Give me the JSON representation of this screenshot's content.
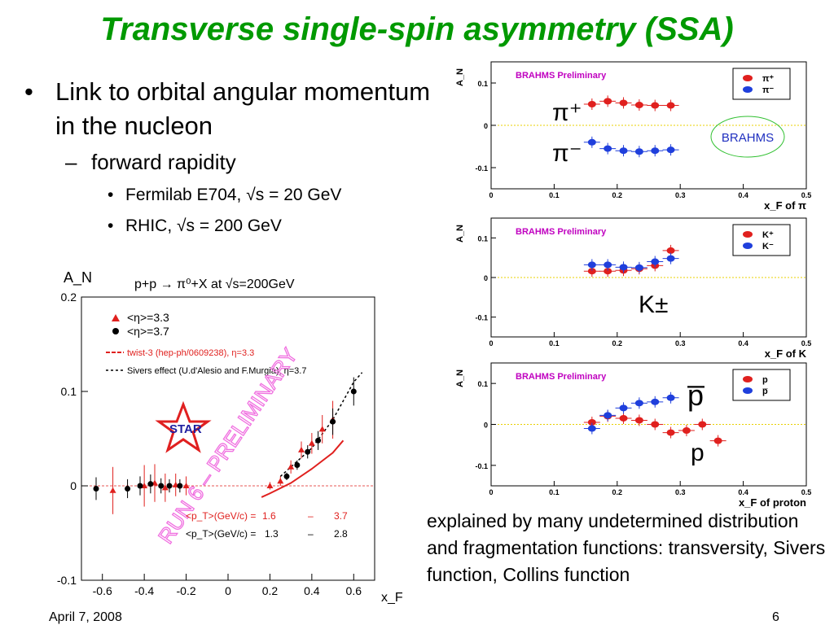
{
  "slide": {
    "title": "Transverse single-spin asymmetry (SSA)",
    "bullet1": "Link to orbital angular momentum in the nucleon",
    "bullet2": "forward rapidity",
    "bullet3a": "Fermilab E704, √s = 20 GeV",
    "bullet3b": "RHIC, √s = 200 GeV",
    "explanation": "explained by many undetermined distribution and fragmentation functions: transversity, Sivers function, Collins function",
    "date": "April 7, 2008",
    "page": "6"
  },
  "colors": {
    "title": "#009900",
    "red": "#e0201e",
    "blue": "#1f3fdc",
    "brahms_label": "#c000c0",
    "star_red": "#e02020"
  },
  "chart_data": [
    {
      "type": "scatter",
      "title": "p+p → π⁰+X at √s=200GeV",
      "ylabel": "A_N",
      "xlabel": "x_F",
      "xlim": [
        -0.7,
        0.7
      ],
      "ylim": [
        -0.1,
        0.2
      ],
      "xticks": [
        "-0.6",
        "-0.4",
        "-0.2",
        "0",
        "0.2",
        "0.4",
        "0.6"
      ],
      "yticks": [
        "-0.1",
        "0",
        "0.1",
        "0.2"
      ],
      "ytick_values": [
        -0.1,
        0,
        0.1,
        0.2
      ],
      "xtick_values": [
        -0.6,
        -0.4,
        -0.2,
        0,
        0.2,
        0.4,
        0.6
      ],
      "legend": [
        "<η>=3.3",
        "<η>=3.7",
        "twist-3 (hep-ph/0609238), η=3.3",
        "Sivers effect (U.d'Alesio and F.Murgia), η=3.7"
      ],
      "pt_lines": [
        "<p_T>(GeV/c) =",
        "1.6",
        "–",
        "3.7",
        "<p_T>(GeV/c) =",
        "1.3",
        "–",
        "2.8"
      ],
      "watermark": "RUN 6 – PRELIMINARY",
      "logo": "STAR",
      "series": [
        {
          "name": "<η>=3.3",
          "color": "#e0201e",
          "marker": "triangle",
          "x": [
            -0.55,
            -0.4,
            -0.35,
            -0.3,
            -0.25,
            -0.2,
            0.2,
            0.25,
            0.3,
            0.35,
            0.4,
            0.45,
            0.5
          ],
          "y": [
            -0.005,
            0.0,
            0.003,
            -0.002,
            0.001,
            0.0,
            0.0,
            0.005,
            0.02,
            0.038,
            0.045,
            0.06,
            0.07
          ],
          "err": [
            0.025,
            0.022,
            0.02,
            0.015,
            0.012,
            0.01,
            0.004,
            0.005,
            0.007,
            0.009,
            0.011,
            0.015,
            0.02
          ]
        },
        {
          "name": "<η>=3.7",
          "color": "#000000",
          "marker": "circle",
          "x": [
            -0.63,
            -0.48,
            -0.42,
            -0.37,
            -0.32,
            -0.28,
            -0.23,
            0.28,
            0.33,
            0.38,
            0.43,
            0.5,
            0.6
          ],
          "y": [
            -0.003,
            -0.003,
            0.0,
            0.002,
            0.0,
            0.0,
            0.0,
            0.01,
            0.022,
            0.036,
            0.048,
            0.068,
            0.1
          ],
          "err": [
            0.012,
            0.01,
            0.01,
            0.01,
            0.008,
            0.007,
            0.007,
            0.004,
            0.005,
            0.007,
            0.01,
            0.014,
            0.015
          ]
        }
      ]
    },
    {
      "type": "scatter",
      "label": "BRAHMS Preliminary",
      "xlabel": "x_F of π",
      "ylabel": "A_N",
      "xlim": [
        0,
        0.5
      ],
      "ylim": [
        -0.15,
        0.15
      ],
      "xticks": [
        "0",
        "0.1",
        "0.2",
        "0.3",
        "0.4",
        "0.5"
      ],
      "yticks": [
        "0.1",
        "0",
        "-0.1"
      ],
      "annotations": [
        "π⁺",
        "π⁻",
        "BRAHMS"
      ],
      "series": [
        {
          "name": "π⁺",
          "color": "#e0201e",
          "x": [
            0.16,
            0.185,
            0.21,
            0.235,
            0.26,
            0.285
          ],
          "y": [
            0.05,
            0.057,
            0.053,
            0.048,
            0.047,
            0.047
          ]
        },
        {
          "name": "π⁻",
          "color": "#1f3fdc",
          "x": [
            0.16,
            0.185,
            0.21,
            0.235,
            0.26,
            0.285
          ],
          "y": [
            -0.04,
            -0.055,
            -0.06,
            -0.062,
            -0.06,
            -0.058
          ]
        }
      ]
    },
    {
      "type": "scatter",
      "label": "BRAHMS Preliminary",
      "xlabel": "x_F of K",
      "ylabel": "A_N",
      "xlim": [
        0,
        0.5
      ],
      "ylim": [
        -0.15,
        0.15
      ],
      "xticks": [
        "0",
        "0.1",
        "0.2",
        "0.3",
        "0.4",
        "0.5"
      ],
      "yticks": [
        "0.1",
        "0",
        "-0.1"
      ],
      "annotations": [
        "K±"
      ],
      "series": [
        {
          "name": "K⁺",
          "color": "#e0201e",
          "x": [
            0.16,
            0.185,
            0.21,
            0.235,
            0.26,
            0.285
          ],
          "y": [
            0.016,
            0.016,
            0.018,
            0.022,
            0.03,
            0.068
          ]
        },
        {
          "name": "K⁻",
          "color": "#1f3fdc",
          "x": [
            0.16,
            0.185,
            0.21,
            0.235,
            0.26,
            0.285
          ],
          "y": [
            0.032,
            0.032,
            0.026,
            0.025,
            0.04,
            0.048
          ]
        }
      ]
    },
    {
      "type": "scatter",
      "label": "BRAHMS Preliminary",
      "xlabel": "x_F of proton",
      "ylabel": "A_N",
      "xlim": [
        0,
        0.5
      ],
      "ylim": [
        -0.15,
        0.15
      ],
      "xticks": [
        "0",
        "0.1",
        "0.2",
        "0.3",
        "0.4",
        "0.5"
      ],
      "yticks": [
        "0.1",
        "0",
        "-0.1"
      ],
      "annotations": [
        "p̅",
        "p"
      ],
      "series": [
        {
          "name": "p",
          "color": "#e0201e",
          "x": [
            0.16,
            0.185,
            0.21,
            0.235,
            0.26,
            0.285,
            0.31,
            0.335,
            0.36
          ],
          "y": [
            0.005,
            0.02,
            0.015,
            0.01,
            0.0,
            -0.02,
            -0.015,
            0.0,
            -0.04
          ]
        },
        {
          "name": "p̅",
          "color": "#1f3fdc",
          "x": [
            0.16,
            0.185,
            0.21,
            0.235,
            0.26,
            0.285
          ],
          "y": [
            -0.01,
            0.022,
            0.04,
            0.052,
            0.055,
            0.065
          ]
        }
      ]
    }
  ]
}
